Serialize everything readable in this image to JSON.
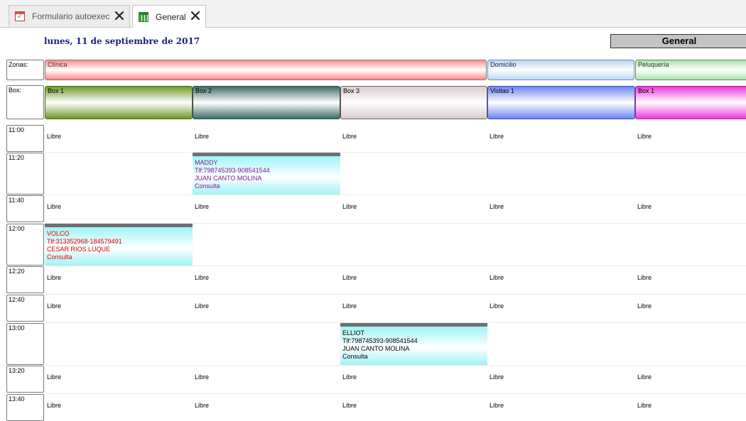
{
  "tabs": [
    {
      "label": "Formulario autoexec",
      "icon": "calendar-check-icon",
      "active": false
    },
    {
      "label": "General",
      "icon": "grid-table-icon",
      "active": true
    }
  ],
  "header": {
    "date": "lunes, 11 de septiembre de 2017",
    "view_title": "General"
  },
  "labels": {
    "zonas": "Zonas:",
    "box": "Box:"
  },
  "zones": [
    {
      "label": "Clínica",
      "color": "#ff8c8c"
    },
    {
      "label": "Domicilio",
      "color": "#b9d6f2"
    },
    {
      "label": "Peluquería",
      "color": "#a8e6a8"
    }
  ],
  "boxes": [
    {
      "label": "Box 1",
      "color": "#6e9a2a"
    },
    {
      "label": "Box 2",
      "color": "#3e6d68"
    },
    {
      "label": "Box 3",
      "color": "#d8cccc"
    },
    {
      "label": "Visitas 1",
      "color": "#6e86f0"
    },
    {
      "label": "Box 1",
      "color": "#ee38dc"
    }
  ],
  "free_label": "Libre",
  "times": [
    "11:00",
    "11:20",
    "11:40",
    "12:00",
    "12:20",
    "12:40",
    "13:00",
    "13:20",
    "13:40"
  ],
  "appointments": [
    {
      "time": "11:20",
      "box": "Box 2",
      "name": "MADDY",
      "phone": "Tlf:798745393-908541544",
      "professional": "JUAN CANTO MOLINA",
      "type": "Consulta",
      "text_color": "#8b1a8b"
    },
    {
      "time": "12:00",
      "box": "Box 1",
      "name": "VOLCO",
      "phone": "Tlf:313352968-184579491",
      "professional": "CESAR RIOS LUQUE",
      "type": "Consulta",
      "text_color": "#e00000"
    },
    {
      "time": "13:00",
      "box": "Box 3",
      "name": "ELLIOT",
      "phone": "Tlf:798745393-908541544",
      "professional": "JUAN CANTO MOLINA",
      "type": "Consulta",
      "text_color": "#000000"
    }
  ]
}
